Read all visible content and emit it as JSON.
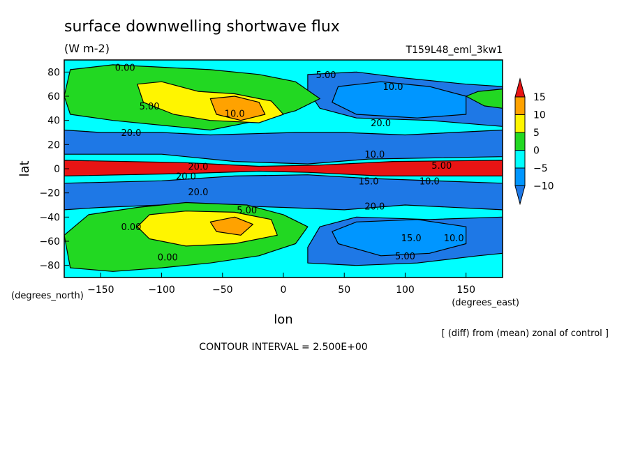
{
  "chart_data": {
    "type": "heatmap",
    "title": "surface downwelling shortwave flux",
    "units": "(W m-2)",
    "dataset": "T159L48_eml_3kw1",
    "xlabel": "lon",
    "ylabel": "lat",
    "xunits": "(degrees_east)",
    "yunits": "(degrees_north)",
    "xlim": [
      -180,
      180
    ],
    "ylim": [
      -90,
      90
    ],
    "xticks": [
      -150,
      -100,
      -50,
      0,
      50,
      100,
      150
    ],
    "yticks": [
      -80,
      -60,
      -40,
      -20,
      0,
      20,
      40,
      60,
      80
    ],
    "operation": "[ (diff) from (mean) zonal of control ]",
    "contour_interval_text": "CONTOUR INTERVAL = 2.500E+00",
    "colorbar": {
      "levels": [
        -10,
        -5,
        0,
        5,
        10,
        15
      ],
      "colors": [
        "#1e78e6",
        "#0096ff",
        "#00ffff",
        "#22d822",
        "#fff500",
        "#ffa200",
        "#e81414"
      ],
      "extend": "both"
    },
    "contour_labels": [
      {
        "lon": -130,
        "lat": 84,
        "text": "0.00"
      },
      {
        "lon": 35,
        "lat": 78,
        "text": "5.00"
      },
      {
        "lon": 90,
        "lat": 68,
        "text": "10.0"
      },
      {
        "lon": -110,
        "lat": 52,
        "text": "5.00"
      },
      {
        "lon": -40,
        "lat": 46,
        "text": "10.0"
      },
      {
        "lon": 80,
        "lat": 38,
        "text": "20.0"
      },
      {
        "lon": -125,
        "lat": 30,
        "text": "20.0"
      },
      {
        "lon": 75,
        "lat": 12,
        "text": "10.0"
      },
      {
        "lon": -70,
        "lat": 2,
        "text": "20.0"
      },
      {
        "lon": 130,
        "lat": 3,
        "text": "5.00"
      },
      {
        "lon": -80,
        "lat": -6,
        "text": "20.0"
      },
      {
        "lon": 70,
        "lat": -10,
        "text": "15.0"
      },
      {
        "lon": 120,
        "lat": -10,
        "text": "10.0"
      },
      {
        "lon": -70,
        "lat": -19,
        "text": "20.0"
      },
      {
        "lon": 75,
        "lat": -31,
        "text": "20.0"
      },
      {
        "lon": -30,
        "lat": -34,
        "text": "5.00"
      },
      {
        "lon": -125,
        "lat": -48,
        "text": "0.00"
      },
      {
        "lon": 105,
        "lat": -57,
        "text": "15.0"
      },
      {
        "lon": 140,
        "lat": -57,
        "text": "10.0"
      },
      {
        "lon": -95,
        "lat": -73,
        "text": "0.00"
      },
      {
        "lon": 100,
        "lat": -72,
        "text": "5.00"
      }
    ],
    "fields": [
      {
        "value": -15,
        "pts": [
          [
            -180,
            -12
          ],
          [
            -100,
            -10
          ],
          [
            -40,
            -6
          ],
          [
            20,
            -5
          ],
          [
            70,
            -8
          ],
          [
            180,
            -12
          ],
          [
            180,
            -34
          ],
          [
            100,
            -30
          ],
          [
            50,
            -34
          ],
          [
            0,
            -32
          ],
          [
            -60,
            -30
          ],
          [
            -100,
            -30
          ],
          [
            -150,
            -32
          ],
          [
            -180,
            -34
          ]
        ]
      },
      {
        "value": -15,
        "pts": [
          [
            -180,
            12
          ],
          [
            -100,
            12
          ],
          [
            -40,
            6
          ],
          [
            20,
            4
          ],
          [
            70,
            8
          ],
          [
            180,
            10
          ],
          [
            180,
            32
          ],
          [
            100,
            28
          ],
          [
            50,
            30
          ],
          [
            10,
            30
          ],
          [
            -60,
            28
          ],
          [
            -100,
            30
          ],
          [
            -150,
            30
          ],
          [
            -180,
            32
          ]
        ]
      },
      {
        "value": -12,
        "pts": [
          [
            20,
            78
          ],
          [
            60,
            80
          ],
          [
            100,
            75
          ],
          [
            150,
            70
          ],
          [
            180,
            68
          ],
          [
            180,
            35
          ],
          [
            120,
            40
          ],
          [
            60,
            42
          ],
          [
            30,
            50
          ],
          [
            20,
            65
          ]
        ]
      },
      {
        "value": -12,
        "pts": [
          [
            20,
            -78
          ],
          [
            60,
            -80
          ],
          [
            110,
            -78
          ],
          [
            160,
            -72
          ],
          [
            180,
            -70
          ],
          [
            180,
            -40
          ],
          [
            120,
            -42
          ],
          [
            60,
            -40
          ],
          [
            30,
            -48
          ],
          [
            20,
            -65
          ]
        ]
      },
      {
        "value": -7,
        "pts": [
          [
            45,
            68
          ],
          [
            80,
            72
          ],
          [
            120,
            68
          ],
          [
            150,
            60
          ],
          [
            150,
            45
          ],
          [
            110,
            42
          ],
          [
            60,
            45
          ],
          [
            40,
            55
          ]
        ]
      },
      {
        "value": -7,
        "pts": [
          [
            45,
            -62
          ],
          [
            80,
            -72
          ],
          [
            120,
            -70
          ],
          [
            150,
            -62
          ],
          [
            150,
            -48
          ],
          [
            110,
            -42
          ],
          [
            60,
            -44
          ],
          [
            40,
            -52
          ]
        ]
      },
      {
        "value": 15,
        "pts": [
          [
            -180,
            -6
          ],
          [
            -80,
            -4
          ],
          [
            -20,
            -2
          ],
          [
            20,
            -3
          ],
          [
            80,
            -6
          ],
          [
            180,
            -6
          ],
          [
            180,
            7
          ],
          [
            90,
            6
          ],
          [
            30,
            3
          ],
          [
            -20,
            2
          ],
          [
            -80,
            5
          ],
          [
            -180,
            7
          ]
        ]
      },
      {
        "value": 2,
        "pts": [
          [
            -175,
            82
          ],
          [
            -140,
            86
          ],
          [
            -100,
            84
          ],
          [
            -60,
            82
          ],
          [
            -20,
            78
          ],
          [
            10,
            72
          ],
          [
            30,
            58
          ],
          [
            10,
            48
          ],
          [
            -20,
            40
          ],
          [
            -60,
            32
          ],
          [
            -100,
            36
          ],
          [
            -140,
            40
          ],
          [
            -175,
            45
          ],
          [
            -180,
            60
          ]
        ]
      },
      {
        "value": 2,
        "pts": [
          [
            -175,
            -82
          ],
          [
            -140,
            -85
          ],
          [
            -100,
            -82
          ],
          [
            -60,
            -78
          ],
          [
            -20,
            -72
          ],
          [
            10,
            -62
          ],
          [
            20,
            -48
          ],
          [
            0,
            -38
          ],
          [
            -30,
            -30
          ],
          [
            -80,
            -28
          ],
          [
            -120,
            -32
          ],
          [
            -160,
            -38
          ],
          [
            -180,
            -55
          ]
        ]
      },
      {
        "value": 2,
        "pts": [
          [
            150,
            60
          ],
          [
            160,
            64
          ],
          [
            180,
            66
          ],
          [
            180,
            50
          ],
          [
            165,
            52
          ]
        ]
      },
      {
        "value": 6,
        "pts": [
          [
            -120,
            70
          ],
          [
            -100,
            72
          ],
          [
            -70,
            64
          ],
          [
            -40,
            62
          ],
          [
            -10,
            56
          ],
          [
            0,
            45
          ],
          [
            -20,
            38
          ],
          [
            -60,
            40
          ],
          [
            -90,
            45
          ],
          [
            -115,
            55
          ]
        ]
      },
      {
        "value": 6,
        "pts": [
          [
            -110,
            -38
          ],
          [
            -80,
            -35
          ],
          [
            -40,
            -36
          ],
          [
            -10,
            -42
          ],
          [
            -5,
            -55
          ],
          [
            -40,
            -62
          ],
          [
            -80,
            -64
          ],
          [
            -110,
            -58
          ],
          [
            -120,
            -48
          ]
        ]
      },
      {
        "value": 11,
        "pts": [
          [
            -60,
            58
          ],
          [
            -40,
            60
          ],
          [
            -20,
            55
          ],
          [
            -15,
            45
          ],
          [
            -35,
            40
          ],
          [
            -55,
            45
          ]
        ]
      },
      {
        "value": 11,
        "pts": [
          [
            -60,
            -44
          ],
          [
            -40,
            -40
          ],
          [
            -25,
            -46
          ],
          [
            -35,
            -55
          ],
          [
            -55,
            -52
          ]
        ]
      }
    ]
  }
}
